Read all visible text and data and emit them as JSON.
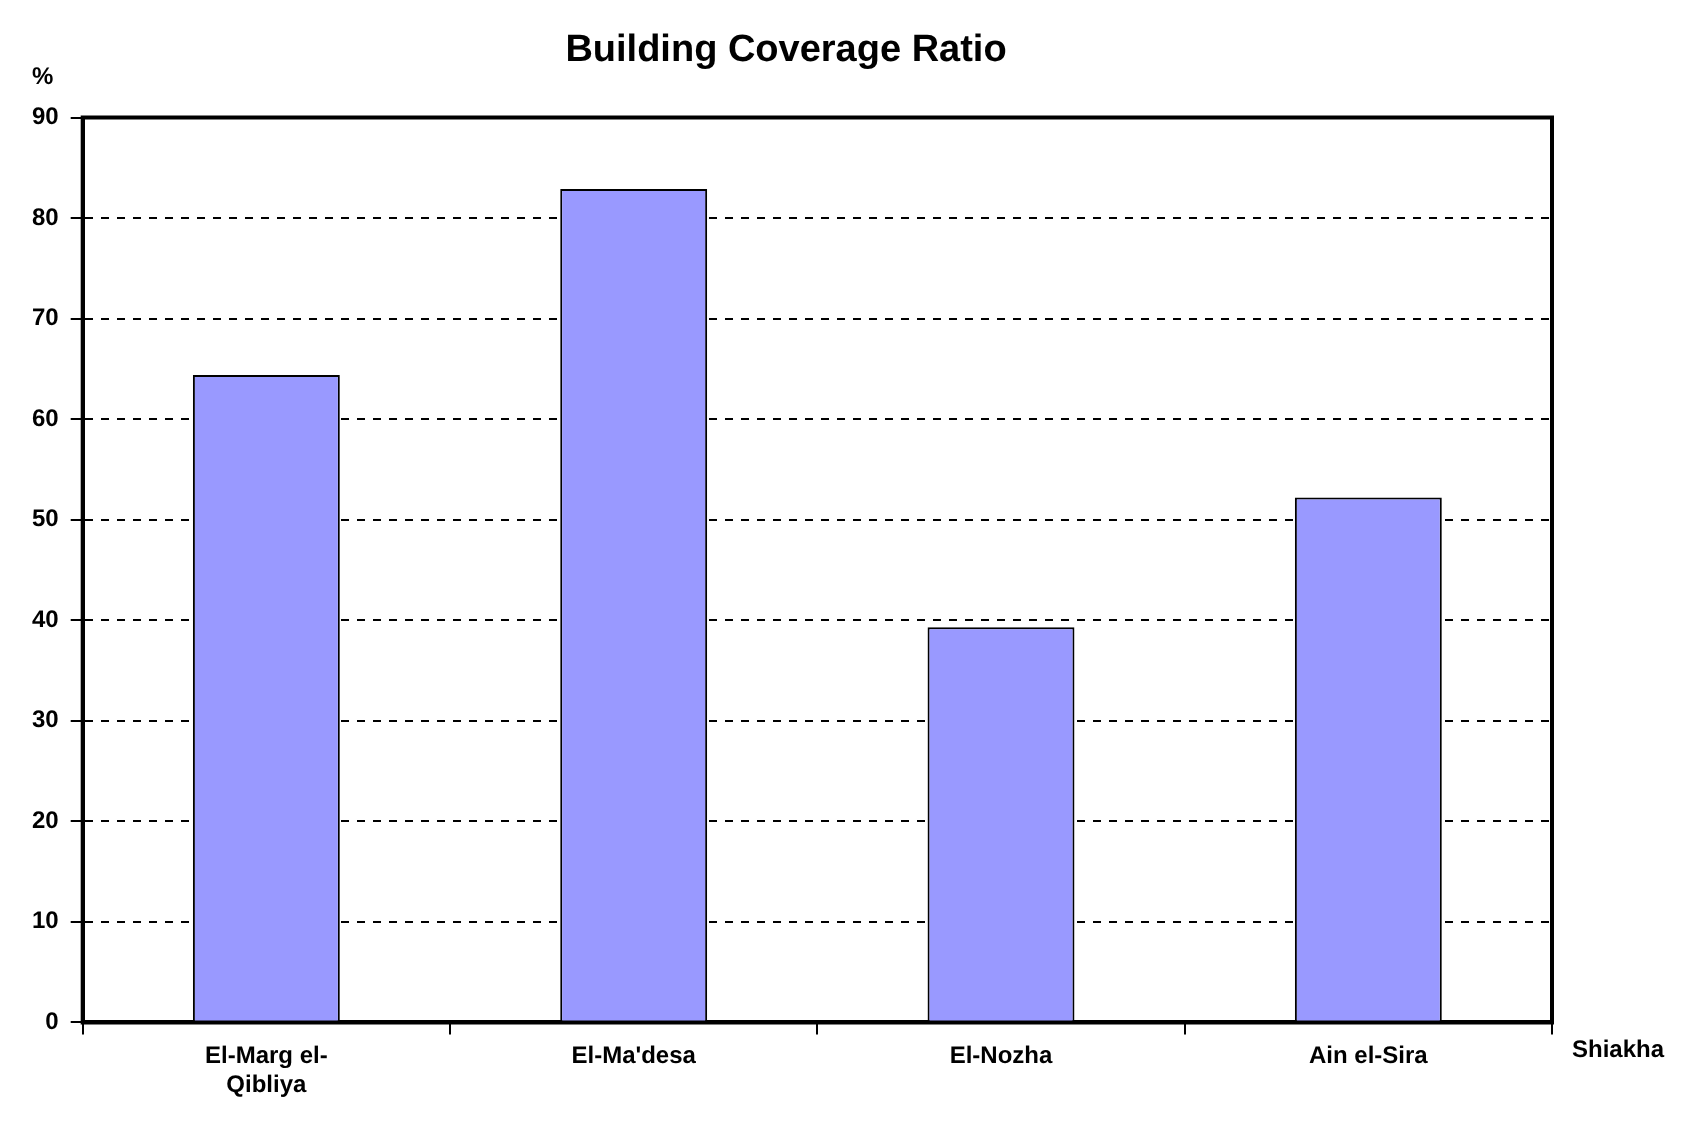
{
  "chart_data": {
    "type": "bar",
    "title": "Building Coverage Ratio",
    "xlabel": "Shiakha",
    "ylabel": "%",
    "categories": [
      "El-Marg el-Qibliya",
      "El-Ma'desa",
      "El-Nozha",
      "Ain el-Sira"
    ],
    "values": [
      64.4,
      82.9,
      39.3,
      52.2
    ],
    "color": "#9999ff",
    "ylim": [
      0,
      90
    ],
    "yticks": [
      0,
      10,
      20,
      30,
      40,
      50,
      60,
      70,
      80,
      90
    ],
    "grid": "y",
    "legend": false
  }
}
